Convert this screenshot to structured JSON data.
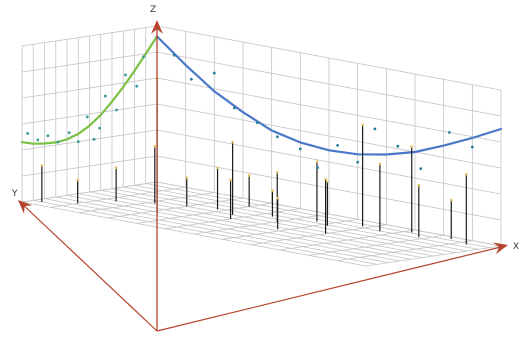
{
  "chart_data": {
    "type": "scatter",
    "dimensions": 3,
    "title": "",
    "axes": {
      "x_label": "X",
      "y_label": "Y",
      "z_label": "Z",
      "x_range": [
        0,
        12
      ],
      "y_range": [
        0,
        12
      ],
      "z_range": [
        0,
        6
      ]
    },
    "grid": true,
    "legend": "none",
    "axis_color": "#b5422a",
    "stem_color": "#1a1a1a",
    "series": [
      {
        "fit_color": "#79c043",
        "point_color": "#3a9a9a",
        "plane": "x=0",
        "fit_curve": [
          {
            "y": 12.0,
            "z": 2.3
          },
          {
            "y": 11.0,
            "z": 2.18
          },
          {
            "y": 10.0,
            "z": 2.12
          },
          {
            "y": 9.0,
            "z": 2.1
          },
          {
            "y": 8.0,
            "z": 2.15
          },
          {
            "y": 7.0,
            "z": 2.3
          },
          {
            "y": 6.0,
            "z": 2.55
          },
          {
            "y": 5.0,
            "z": 2.9
          },
          {
            "y": 4.0,
            "z": 3.35
          },
          {
            "y": 3.0,
            "z": 3.85
          },
          {
            "y": 2.0,
            "z": 4.4
          },
          {
            "y": 1.0,
            "z": 5.0
          },
          {
            "y": 0.0,
            "z": 5.6
          }
        ],
        "points": [
          {
            "y": 11.5,
            "z": 2.6
          },
          {
            "y": 10.6,
            "z": 2.3
          },
          {
            "y": 9.7,
            "z": 2.4
          },
          {
            "y": 8.8,
            "z": 2.1
          },
          {
            "y": 7.8,
            "z": 2.4
          },
          {
            "y": 7.0,
            "z": 2.0
          },
          {
            "y": 6.2,
            "z": 2.9
          },
          {
            "y": 5.6,
            "z": 2.0
          },
          {
            "y": 5.1,
            "z": 2.4
          },
          {
            "y": 4.6,
            "z": 3.6
          },
          {
            "y": 3.6,
            "z": 3.0
          },
          {
            "y": 2.8,
            "z": 4.3
          },
          {
            "y": 1.8,
            "z": 3.8
          },
          {
            "y": 1.2,
            "z": 4.9
          }
        ]
      },
      {
        "fit_color": "#4a78c8",
        "point_color": "#2a7f9f",
        "plane": "y=0",
        "fit_curve": [
          {
            "x": 0.0,
            "z": 5.6
          },
          {
            "x": 1.0,
            "z": 4.7
          },
          {
            "x": 2.0,
            "z": 3.9
          },
          {
            "x": 3.0,
            "z": 3.3
          },
          {
            "x": 4.0,
            "z": 2.8
          },
          {
            "x": 5.0,
            "z": 2.55
          },
          {
            "x": 6.0,
            "z": 2.45
          },
          {
            "x": 7.0,
            "z": 2.5
          },
          {
            "x": 8.0,
            "z": 2.7
          },
          {
            "x": 9.0,
            "z": 3.0
          },
          {
            "x": 10.0,
            "z": 3.45
          },
          {
            "x": 11.0,
            "z": 3.95
          },
          {
            "x": 12.0,
            "z": 4.5
          }
        ],
        "points": [
          {
            "x": 0.6,
            "z": 5.0
          },
          {
            "x": 1.2,
            "z": 4.2
          },
          {
            "x": 2.0,
            "z": 4.6
          },
          {
            "x": 2.7,
            "z": 3.4
          },
          {
            "x": 3.5,
            "z": 3.0
          },
          {
            "x": 4.2,
            "z": 2.6
          },
          {
            "x": 5.0,
            "z": 2.3
          },
          {
            "x": 5.6,
            "z": 1.7
          },
          {
            "x": 6.3,
            "z": 2.7
          },
          {
            "x": 7.0,
            "z": 2.2
          },
          {
            "x": 7.6,
            "z": 3.6
          },
          {
            "x": 8.4,
            "z": 3.1
          },
          {
            "x": 9.2,
            "z": 2.4
          },
          {
            "x": 10.2,
            "z": 4.0
          },
          {
            "x": 11.0,
            "z": 3.6
          }
        ]
      }
    ],
    "stems": [
      {
        "x": 0.3,
        "y": 11.0,
        "z": 1.4
      },
      {
        "x": 1.0,
        "y": 9.6,
        "z": 0.9
      },
      {
        "x": 1.4,
        "y": 7.2,
        "z": 1.3
      },
      {
        "x": 2.2,
        "y": 5.8,
        "z": 2.2
      },
      {
        "x": 3.0,
        "y": 5.0,
        "z": 1.1
      },
      {
        "x": 3.8,
        "y": 4.3,
        "z": 1.6
      },
      {
        "x": 4.6,
        "y": 5.0,
        "z": 2.8
      },
      {
        "x": 5.4,
        "y": 3.5,
        "z": 1.0
      },
      {
        "x": 6.0,
        "y": 4.6,
        "z": 1.9
      },
      {
        "x": 6.6,
        "y": 2.6,
        "z": 2.3
      },
      {
        "x": 7.2,
        "y": 3.2,
        "z": 1.7
      },
      {
        "x": 7.8,
        "y": 1.6,
        "z": 3.9
      },
      {
        "x": 8.6,
        "y": 2.1,
        "z": 2.6
      },
      {
        "x": 9.2,
        "y": 0.8,
        "z": 3.3
      },
      {
        "x": 9.8,
        "y": 1.7,
        "z": 2.0
      },
      {
        "x": 10.5,
        "y": 0.6,
        "z": 1.5
      },
      {
        "x": 11.3,
        "y": 1.3,
        "z": 2.7
      },
      {
        "x": 3.3,
        "y": 8.4,
        "z": 5.2
      },
      {
        "x": 4.0,
        "y": 2.0,
        "z": 1.2
      },
      {
        "x": 5.0,
        "y": 6.2,
        "z": 1.5
      },
      {
        "x": 8.0,
        "y": 5.4,
        "z": 2.1
      },
      {
        "x": 6.8,
        "y": 6.6,
        "z": 1.2
      }
    ]
  }
}
